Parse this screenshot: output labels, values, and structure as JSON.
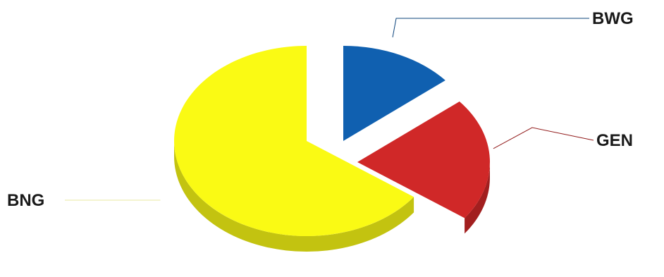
{
  "chart_data": {
    "type": "pie",
    "title": "",
    "exploded": true,
    "three_d": true,
    "legend": "none",
    "slices": [
      {
        "label": "BWG",
        "value": 14,
        "color": "#1060b0"
      },
      {
        "label": "GEN",
        "value": 21,
        "color": "#d02828"
      },
      {
        "label": "BNG",
        "value": 65,
        "color": "#fafa14"
      }
    ]
  }
}
